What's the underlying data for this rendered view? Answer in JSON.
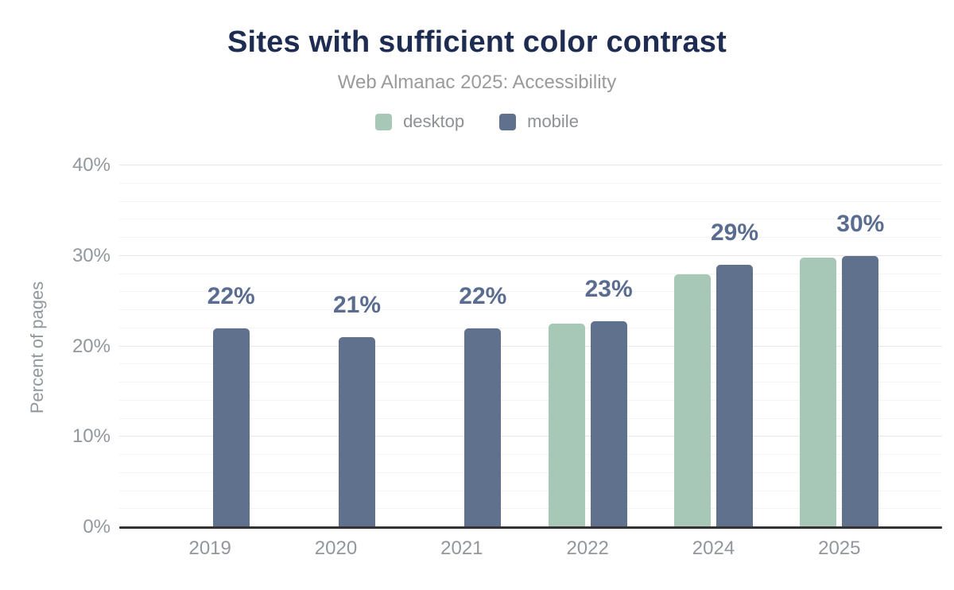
{
  "chart_data": {
    "type": "bar",
    "title": "Sites with sufficient color contrast",
    "subtitle": "Web Almanac 2025: Accessibility",
    "categories": [
      "2019",
      "2020",
      "2021",
      "2022",
      "2024",
      "2025"
    ],
    "series": [
      {
        "name": "desktop",
        "color": "#a7c8b7",
        "values": [
          null,
          null,
          null,
          22.5,
          28,
          29.8
        ]
      },
      {
        "name": "mobile",
        "color": "#5f718c",
        "values": [
          22,
          21,
          22,
          22.8,
          29,
          30
        ]
      }
    ],
    "bar_labels": [
      "22%",
      "21%",
      "22%",
      "23%",
      "29%",
      "30%"
    ],
    "label_series": "mobile",
    "xlabel": "",
    "ylabel": "Percent of pages",
    "ylim": [
      0,
      40
    ],
    "yticks": [
      {
        "value": 0,
        "label": "0%"
      },
      {
        "value": 10,
        "label": "10%"
      },
      {
        "value": 20,
        "label": "20%"
      },
      {
        "value": 30,
        "label": "30%"
      },
      {
        "value": 40,
        "label": "40%"
      }
    ],
    "grid": {
      "on": true,
      "major_step": 10,
      "minor_step": 2
    },
    "legend_position": "top"
  },
  "style": {
    "title_color": "#1e2c51",
    "subtitle_color": "#9a9a9a",
    "legend_text_color": "#8d9196",
    "axis_text_color": "#92979e",
    "data_label_color": "#5a6c8f",
    "grid_major_color": "#e6e6e6",
    "grid_minor_color": "#f4f4f6",
    "axis_line_color": "#333333",
    "background": "#ffffff"
  }
}
